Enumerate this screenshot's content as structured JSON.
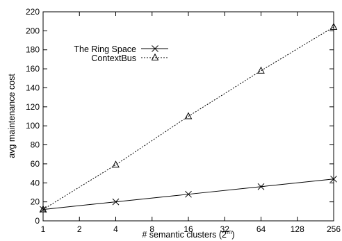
{
  "chart_data": {
    "type": "line",
    "title": "",
    "xlabel": "# semantic clusters (2",
    "xlabel_sup": "m",
    "xlabel_close": ")",
    "ylabel": "avg maintenance cost",
    "x_scale": "log2",
    "xlim": [
      1,
      256
    ],
    "ylim": [
      0,
      220
    ],
    "x_ticks": [
      1,
      2,
      4,
      8,
      16,
      32,
      64,
      128,
      256
    ],
    "y_ticks": [
      0,
      20,
      40,
      60,
      80,
      100,
      120,
      140,
      160,
      180,
      200,
      220
    ],
    "grid": false,
    "legend_position": "top-left",
    "series": [
      {
        "name": "The Ring Space",
        "line_style": "solid",
        "marker": "x",
        "color": "#000000",
        "x": [
          1,
          4,
          16,
          64,
          256
        ],
        "y": [
          12,
          20,
          28,
          36,
          44
        ]
      },
      {
        "name": "ContextBus",
        "line_style": "dashed",
        "marker": "triangle",
        "color": "#000000",
        "x": [
          1,
          4,
          16,
          64,
          256
        ],
        "y": [
          12,
          59,
          110,
          158,
          204
        ]
      }
    ]
  }
}
